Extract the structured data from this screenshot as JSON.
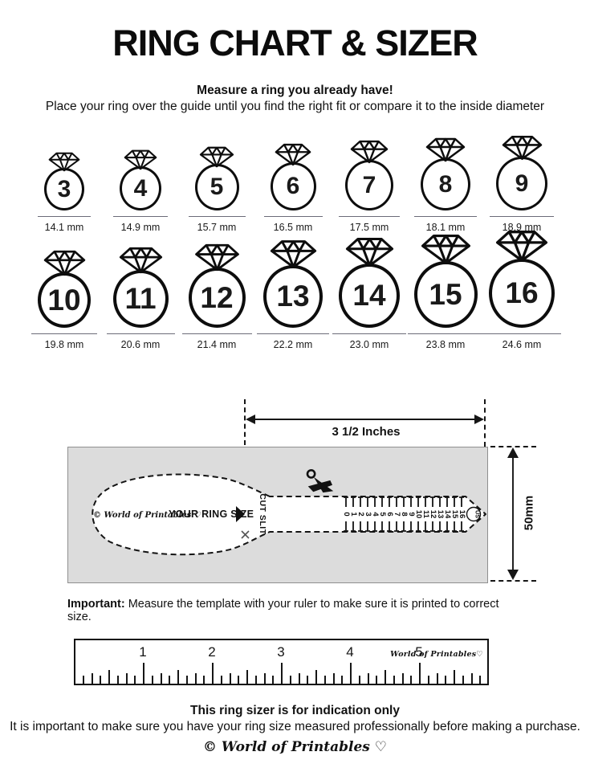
{
  "title": "RING CHART & SIZER",
  "intro": {
    "headline": "Measure a ring you already have!",
    "body": "Place your ring over the guide until you find the right fit or compare it to the inside diameter"
  },
  "ring_chart": {
    "rows": [
      [
        {
          "size": "3",
          "diameter": "14.1 mm"
        },
        {
          "size": "4",
          "diameter": "14.9 mm"
        },
        {
          "size": "5",
          "diameter": "15.7 mm"
        },
        {
          "size": "6",
          "diameter": "16.5 mm"
        },
        {
          "size": "7",
          "diameter": "17.5 mm"
        },
        {
          "size": "8",
          "diameter": "18.1 mm"
        },
        {
          "size": "9",
          "diameter": "18.9 mm"
        }
      ],
      [
        {
          "size": "10",
          "diameter": "19.8 mm"
        },
        {
          "size": "11",
          "diameter": "20.6 mm"
        },
        {
          "size": "12",
          "diameter": "21.4 mm"
        },
        {
          "size": "13",
          "diameter": "22.2 mm"
        },
        {
          "size": "14",
          "diameter": "23.0 mm"
        },
        {
          "size": "15",
          "diameter": "23.8 mm"
        },
        {
          "size": "16",
          "diameter": "24.6 mm"
        }
      ]
    ]
  },
  "sizer": {
    "width_label": "3 1/2 Inches",
    "height_label": "50mm",
    "brand": "© World of Printables ♡",
    "ring_size_label": "YOUR RING SIZE",
    "cut_slit_label": "CUT SLIT",
    "scale_numbers": [
      "0",
      "1",
      "2",
      "3",
      "4",
      "5",
      "6",
      "7",
      "8",
      "9",
      "10",
      "11",
      "12",
      "13",
      "14",
      "15",
      "16"
    ],
    "scale_unit": "US"
  },
  "note": {
    "label": "Important:",
    "text": " Measure the template with your ruler to make sure it is printed to correct size."
  },
  "ruler": {
    "numbers": [
      "1",
      "2",
      "3",
      "4",
      "5"
    ],
    "brand": "World of Printables♡"
  },
  "footer": {
    "headline": "This ring sizer is for indication only",
    "body": "It is important to make sure you have your ring size measured professionally before making a purchase.",
    "brand": "© World of Printables ♡"
  },
  "colors": {
    "ink": "#111111",
    "sizer_box_fill": "#dcdcdc",
    "sizer_box_border": "#8f8f8f"
  }
}
